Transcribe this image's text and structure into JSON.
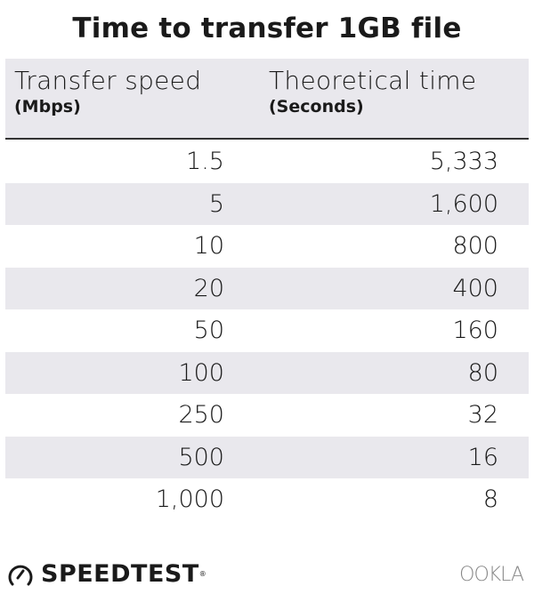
{
  "chart_data": {
    "type": "table",
    "title": "Time to transfer 1GB file",
    "columns": [
      {
        "label": "Transfer speed",
        "unit": "(Mbps)"
      },
      {
        "label": "Theoretical time",
        "unit": "(Seconds)"
      }
    ],
    "rows": [
      [
        "1.5",
        "5,333"
      ],
      [
        "5",
        "1,600"
      ],
      [
        "10",
        "800"
      ],
      [
        "20",
        "400"
      ],
      [
        "50",
        "160"
      ],
      [
        "100",
        "80"
      ],
      [
        "250",
        "32"
      ],
      [
        "500",
        "16"
      ],
      [
        "1,000",
        "8"
      ]
    ],
    "colors": {
      "header_bg": "#e9e8ed",
      "stripe": "#e9e8ed",
      "text": "#1a1a1a"
    }
  },
  "footer": {
    "brand": "SPEEDTEST",
    "brand_mark": "®",
    "partner_logo": "OOKLA"
  }
}
